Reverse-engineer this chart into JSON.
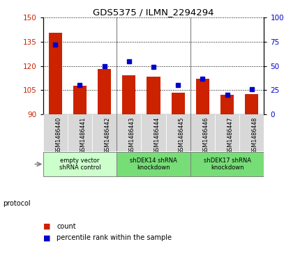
{
  "title": "GDS5375 / ILMN_2294294",
  "samples": [
    "GSM1486440",
    "GSM1486441",
    "GSM1486442",
    "GSM1486443",
    "GSM1486444",
    "GSM1486445",
    "GSM1486446",
    "GSM1486447",
    "GSM1486448"
  ],
  "count_values": [
    140.5,
    107.5,
    118.0,
    114.0,
    113.5,
    103.5,
    112.0,
    102.0,
    102.5
  ],
  "percentile_values": [
    72,
    30,
    50,
    55,
    49,
    30,
    37,
    20,
    26
  ],
  "ylim_left": [
    90,
    150
  ],
  "ylim_right": [
    0,
    100
  ],
  "yticks_left": [
    90,
    105,
    120,
    135,
    150
  ],
  "yticks_right": [
    0,
    25,
    50,
    75,
    100
  ],
  "bar_color": "#cc2200",
  "marker_color": "#0000cc",
  "bar_bottom": 90,
  "bg_color": "#ffffff",
  "plot_bg": "#ffffff",
  "tick_bg_color": "#d8d8d8",
  "protocol_groups": [
    {
      "label": "empty vector\nshRNA control",
      "start": 0,
      "end": 3,
      "color": "#ccffcc"
    },
    {
      "label": "shDEK14 shRNA\nknockdown",
      "start": 3,
      "end": 6,
      "color": "#77dd77"
    },
    {
      "label": "shDEK17 shRNA\nknockdown",
      "start": 6,
      "end": 9,
      "color": "#77dd77"
    }
  ],
  "legend_count_label": "count",
  "legend_pct_label": "percentile rank within the sample",
  "protocol_label": "protocol"
}
